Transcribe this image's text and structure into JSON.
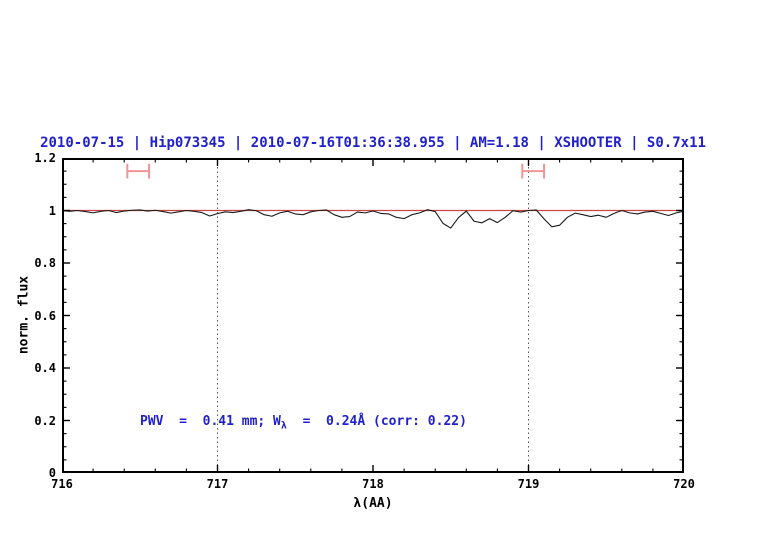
{
  "title": "2010-07-15 | Hip073345 | 2010-07-16T01:36:38.955 | AM=1.18 | XSHOOTER | S0.7x11",
  "colors": {
    "title_blue": "#2020cc",
    "annotation_blue": "#2020cc",
    "model_red": "#cc4444",
    "marker_pink": "#f09494",
    "spectrum_black": "#1a1a1a",
    "dotted_line_gray": "#555555",
    "axis_black": "#000000"
  },
  "annotation": {
    "pre": "PWV  =  0.41 mm; W",
    "sub": "λ",
    "post": "  =  0.24Å (corr: 0.22)"
  },
  "chart_data": {
    "type": "line",
    "title": "2010-07-15 | Hip073345 | 2010-07-16T01:36:38.955 | AM=1.18 | XSHOOTER | S0.7x11",
    "xlabel": "λ(AA)",
    "ylabel": "norm. flux",
    "xlim": [
      716,
      720
    ],
    "ylim": [
      0,
      1.2
    ],
    "grid": false,
    "legend": false,
    "x_major_ticks": [
      {
        "v": 716,
        "label": "716"
      },
      {
        "v": 717,
        "label": "717"
      },
      {
        "v": 718,
        "label": "718"
      },
      {
        "v": 719,
        "label": "719"
      },
      {
        "v": 720,
        "label": "720"
      }
    ],
    "y_major_ticks": [
      {
        "v": 0,
        "label": "0"
      },
      {
        "v": 0.2,
        "label": "0.2"
      },
      {
        "v": 0.4,
        "label": "0.4"
      },
      {
        "v": 0.6,
        "label": "0.6"
      },
      {
        "v": 0.8,
        "label": "0.8"
      },
      {
        "v": 1,
        "label": "1"
      },
      {
        "v": 1.2,
        "label": "1.2"
      }
    ],
    "x_minor_step": 0.2,
    "y_minor_step": 0.05,
    "vlines": [
      717,
      719
    ],
    "model_line": {
      "y": 1.0
    },
    "markers": [
      {
        "x": 716.49,
        "y": 1.15,
        "half_width": 0.07,
        "cap_half_height": 0.028
      },
      {
        "x": 719.03,
        "y": 1.15,
        "half_width": 0.07,
        "cap_half_height": 0.028
      }
    ],
    "series": [
      {
        "name": "observed normalized spectrum",
        "x_start": 716.0,
        "x_step": 0.05,
        "flux": [
          0.999,
          0.997,
          1.0,
          0.996,
          0.991,
          0.997,
          1.0,
          0.992,
          0.998,
          1.001,
          1.002,
          0.998,
          1.001,
          0.996,
          0.99,
          0.995,
          1.0,
          0.997,
          0.992,
          0.979,
          0.988,
          0.995,
          0.992,
          0.997,
          1.003,
          0.999,
          0.984,
          0.978,
          0.991,
          0.997,
          0.987,
          0.984,
          0.995,
          1.0,
          1.002,
          0.984,
          0.974,
          0.977,
          0.994,
          0.991,
          0.998,
          0.989,
          0.987,
          0.974,
          0.969,
          0.984,
          0.991,
          1.003,
          0.996,
          0.951,
          0.933,
          0.973,
          0.998,
          0.959,
          0.953,
          0.969,
          0.954,
          0.974,
          0.999,
          0.994,
          1.0,
          1.002,
          0.968,
          0.938,
          0.944,
          0.974,
          0.99,
          0.984,
          0.977,
          0.982,
          0.974,
          0.989,
          1.0,
          0.991,
          0.987,
          0.994,
          0.997,
          0.989,
          0.981,
          0.991,
          0.998
        ]
      }
    ]
  }
}
